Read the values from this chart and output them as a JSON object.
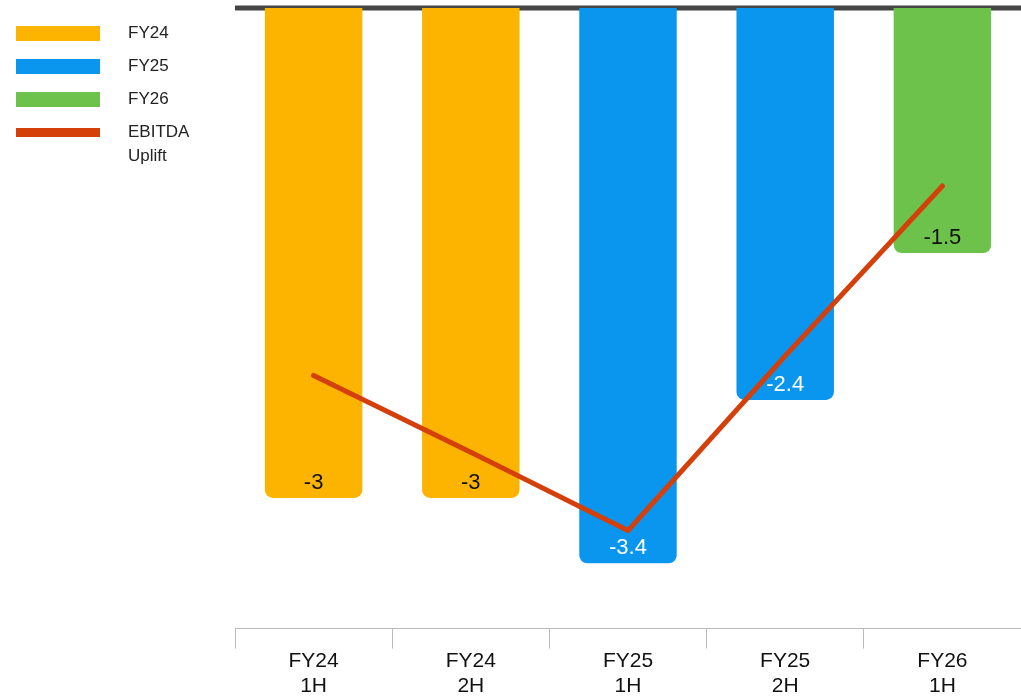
{
  "chart_data": {
    "type": "bar",
    "categories": [
      "FY24 1H",
      "FY24 2H",
      "FY25 1H",
      "FY25 2H",
      "FY26 1H"
    ],
    "series": [
      {
        "name": "FY24",
        "color": "#fdb400",
        "values": [
          -3,
          -3,
          null,
          null,
          null
        ],
        "value_labels": [
          "-3",
          "-3",
          null,
          null,
          null
        ]
      },
      {
        "name": "FY25",
        "color": "#0a96ee",
        "values": [
          null,
          null,
          -3.4,
          -2.4,
          null
        ],
        "value_labels": [
          null,
          null,
          "-3.4",
          "-2.4",
          null
        ]
      },
      {
        "name": "FY26",
        "color": "#6cc24a",
        "values": [
          null,
          null,
          null,
          null,
          -1.5
        ],
        "value_labels": [
          null,
          null,
          null,
          null,
          "-1.5"
        ]
      },
      {
        "name": "EBITDA Uplift",
        "type": "line",
        "color": "#d43f0a",
        "values": [
          -2.25,
          -2.72,
          -3.2,
          -2.13,
          -1.09
        ]
      }
    ],
    "ylim": [
      -3.8,
      0
    ],
    "tick_labels": "x",
    "legend": "top left",
    "grid": false,
    "marker": "none",
    "line_style": "solid"
  }
}
